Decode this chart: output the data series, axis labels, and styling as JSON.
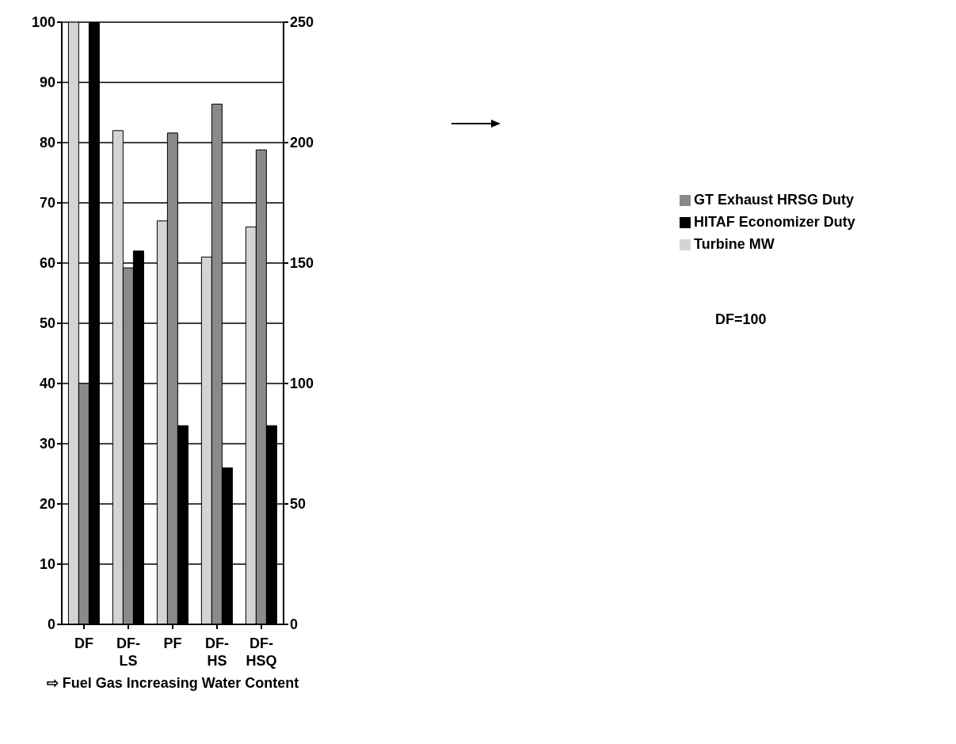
{
  "chart_data": {
    "type": "bar",
    "xlabel": "⇨ Fuel Gas Increasing Water Content",
    "categories": [
      "DF",
      "DF-\nLS",
      "PF",
      "DF-\nHS",
      "DF-\nHSQ"
    ],
    "series": [
      {
        "name": "Turbine MW",
        "color": "#d4d4d4",
        "values": [
          100,
          82,
          67,
          61,
          66
        ]
      },
      {
        "name": "GT Exhaust HRSG Duty",
        "color": "#8a8a8a",
        "axis": "y2",
        "values": [
          100,
          148,
          204,
          216,
          197
        ]
      },
      {
        "name": "HITAF Economizer Duty",
        "color": "#000000",
        "values": [
          100,
          62,
          33,
          26,
          33
        ]
      }
    ],
    "ylim": [
      0,
      100
    ],
    "yticks": [
      0,
      10,
      20,
      30,
      40,
      50,
      60,
      70,
      80,
      90,
      100
    ],
    "y2lim": [
      0,
      250
    ],
    "y2ticks": [
      0,
      50,
      100,
      150,
      200,
      250
    ],
    "grid": "y",
    "legend": "right",
    "annotations": [
      "DF=100"
    ]
  }
}
